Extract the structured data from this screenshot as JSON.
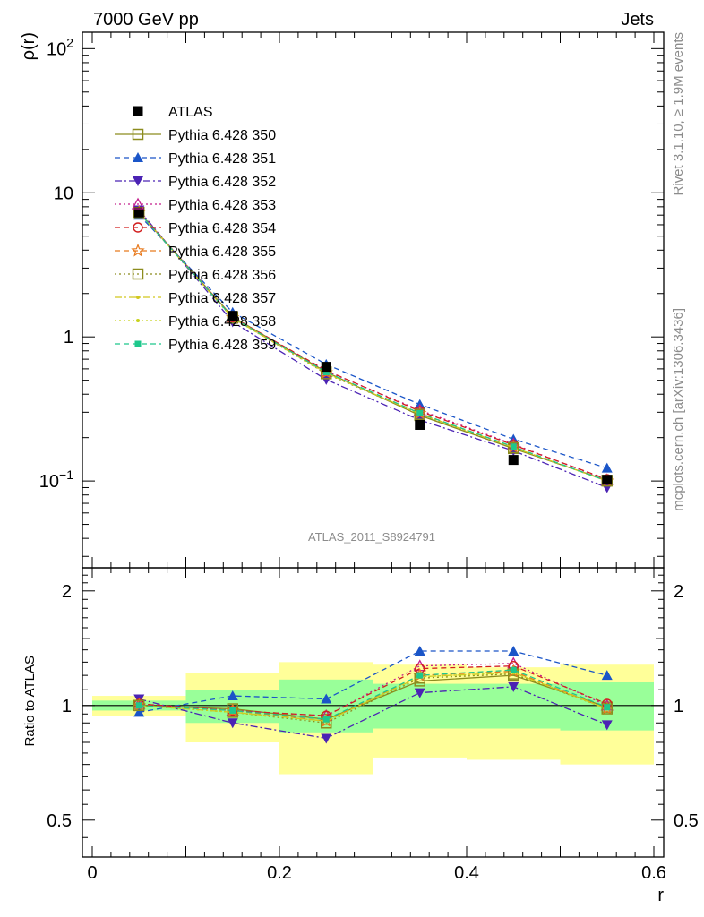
{
  "header": {
    "left": "7000 GeV pp",
    "right": "Jets"
  },
  "side": {
    "rivet": "Rivet 3.1.10, ≥ 1.9M events",
    "mcplots": "mcplots.cern.ch [arXiv:1306.3436]"
  },
  "watermark": "ATLAS_2011_S8924791",
  "chart_data": [
    {
      "type": "line",
      "panel": "main",
      "ylabel": "ρ(r)",
      "xlabel": "r",
      "xlim": [
        0,
        0.6
      ],
      "ylim": [
        0.025,
        130
      ],
      "yscale": "log",
      "x": [
        0.05,
        0.15,
        0.25,
        0.35,
        0.45,
        0.55
      ],
      "ticks": {
        "x": [
          {
            "v": 0,
            "label": "0"
          },
          {
            "v": 0.2,
            "label": "0.2"
          },
          {
            "v": 0.4,
            "label": "0.4"
          },
          {
            "v": 0.6,
            "label": "0.6"
          }
        ],
        "y": [
          {
            "v": 0.1,
            "label": "10",
            "exp": "−1"
          },
          {
            "v": 1,
            "label": "1",
            "exp": ""
          },
          {
            "v": 10,
            "label": "10",
            "exp": ""
          },
          {
            "v": 100,
            "label": "10",
            "exp": "2"
          }
        ]
      },
      "series": [
        {
          "name": "ATLAS",
          "color": "#000000",
          "marker": "square",
          "dash": "none",
          "values": [
            7.3,
            1.4,
            0.62,
            0.245,
            0.14,
            0.102
          ]
        },
        {
          "name": "Pythia 6.428 350",
          "color": "#8c8c1e",
          "marker": "open-square",
          "dash": "solid",
          "values": [
            7.32,
            1.38,
            0.57,
            0.285,
            0.168,
            0.101
          ]
        },
        {
          "name": "Pythia 6.428 351",
          "color": "#1a55c8",
          "marker": "triangle-up",
          "dash": "dashed",
          "values": [
            7.0,
            1.48,
            0.645,
            0.34,
            0.195,
            0.123
          ]
        },
        {
          "name": "Pythia 6.428 352",
          "color": "#4b23b4",
          "marker": "triangle-down",
          "dash": "dashdot",
          "values": [
            7.6,
            1.27,
            0.505,
            0.265,
            0.162,
            0.09
          ]
        },
        {
          "name": "Pythia 6.428 353",
          "color": "#c41e8c",
          "marker": "open-triangle",
          "dash": "dotted",
          "values": [
            7.4,
            1.36,
            0.58,
            0.31,
            0.18,
            0.102
          ]
        },
        {
          "name": "Pythia 6.428 354",
          "color": "#d21e1e",
          "marker": "open-circle",
          "dash": "dashed",
          "values": [
            7.35,
            1.37,
            0.585,
            0.305,
            0.178,
            0.103
          ]
        },
        {
          "name": "Pythia 6.428 355",
          "color": "#e87a1e",
          "marker": "open-star",
          "dash": "dashed",
          "values": [
            7.3,
            1.36,
            0.565,
            0.295,
            0.172,
            0.1
          ]
        },
        {
          "name": "Pythia 6.428 356",
          "color": "#8c8c1e",
          "marker": "open-square",
          "dash": "dotted",
          "values": [
            7.3,
            1.35,
            0.555,
            0.29,
            0.17,
            0.1
          ]
        },
        {
          "name": "Pythia 6.428 357",
          "color": "#d2c81e",
          "marker": "small-dot",
          "dash": "dashdot",
          "values": [
            7.3,
            1.35,
            0.56,
            0.292,
            0.171,
            0.1
          ]
        },
        {
          "name": "Pythia 6.428 358",
          "color": "#c8d21e",
          "marker": "small-dot",
          "dash": "dotted",
          "values": [
            7.3,
            1.35,
            0.56,
            0.292,
            0.171,
            0.1
          ]
        },
        {
          "name": "Pythia 6.428 359",
          "color": "#1ec88c",
          "marker": "filled-square-small",
          "dash": "dashed",
          "values": [
            7.3,
            1.36,
            0.57,
            0.295,
            0.173,
            0.1
          ]
        }
      ]
    },
    {
      "type": "line",
      "panel": "ratio",
      "ylabel": "Ratio to ATLAS",
      "xlabel": "r",
      "xlim": [
        0,
        0.6
      ],
      "ylim": [
        0.4,
        2.3
      ],
      "yscale": "log",
      "x": [
        0.05,
        0.15,
        0.25,
        0.35,
        0.45,
        0.55
      ],
      "ticks": {
        "x": [
          {
            "v": 0,
            "label": "0"
          },
          {
            "v": 0.2,
            "label": "0.2"
          },
          {
            "v": 0.4,
            "label": "0.4"
          },
          {
            "v": 0.6,
            "label": "0.6"
          }
        ],
        "y": [
          {
            "v": 0.5,
            "label": "0.5"
          },
          {
            "v": 1,
            "label": "1"
          },
          {
            "v": 2,
            "label": "2"
          }
        ]
      },
      "bands": {
        "edges": [
          0.0,
          0.1,
          0.2,
          0.3,
          0.4,
          0.5,
          0.6
        ],
        "stat_low": [
          0.97,
          0.9,
          0.85,
          0.87,
          0.87,
          0.86
        ],
        "stat_high": [
          1.03,
          1.1,
          1.17,
          1.14,
          1.14,
          1.15
        ],
        "tot_low": [
          0.94,
          0.8,
          0.66,
          0.73,
          0.72,
          0.7
        ],
        "tot_high": [
          1.06,
          1.22,
          1.3,
          1.28,
          1.26,
          1.28
        ],
        "stat_color": "#99ff99",
        "tot_color": "#ffff99"
      },
      "series": [
        {
          "name": "Pythia 6.428 350",
          "values": [
            1.0,
            0.98,
            0.92,
            1.16,
            1.2,
            0.99
          ]
        },
        {
          "name": "Pythia 6.428 351",
          "values": [
            0.96,
            1.06,
            1.04,
            1.39,
            1.39,
            1.2
          ]
        },
        {
          "name": "Pythia 6.428 352",
          "values": [
            1.04,
            0.9,
            0.82,
            1.08,
            1.12,
            0.89
          ]
        },
        {
          "name": "Pythia 6.428 353",
          "values": [
            1.01,
            0.97,
            0.94,
            1.27,
            1.29,
            1.0
          ]
        },
        {
          "name": "Pythia 6.428 354",
          "values": [
            1.01,
            0.97,
            0.94,
            1.25,
            1.27,
            1.01
          ]
        },
        {
          "name": "Pythia 6.428 355",
          "values": [
            1.0,
            0.97,
            0.91,
            1.2,
            1.23,
            0.98
          ]
        },
        {
          "name": "Pythia 6.428 356",
          "values": [
            1.0,
            0.96,
            0.9,
            1.18,
            1.21,
            0.98
          ]
        },
        {
          "name": "Pythia 6.428 357",
          "values": [
            1.0,
            0.96,
            0.91,
            1.19,
            1.22,
            0.98
          ]
        },
        {
          "name": "Pythia 6.428 358",
          "values": [
            1.0,
            0.96,
            0.91,
            1.19,
            1.22,
            0.98
          ]
        },
        {
          "name": "Pythia 6.428 359",
          "values": [
            1.0,
            0.97,
            0.92,
            1.2,
            1.24,
            0.99
          ]
        }
      ]
    }
  ]
}
